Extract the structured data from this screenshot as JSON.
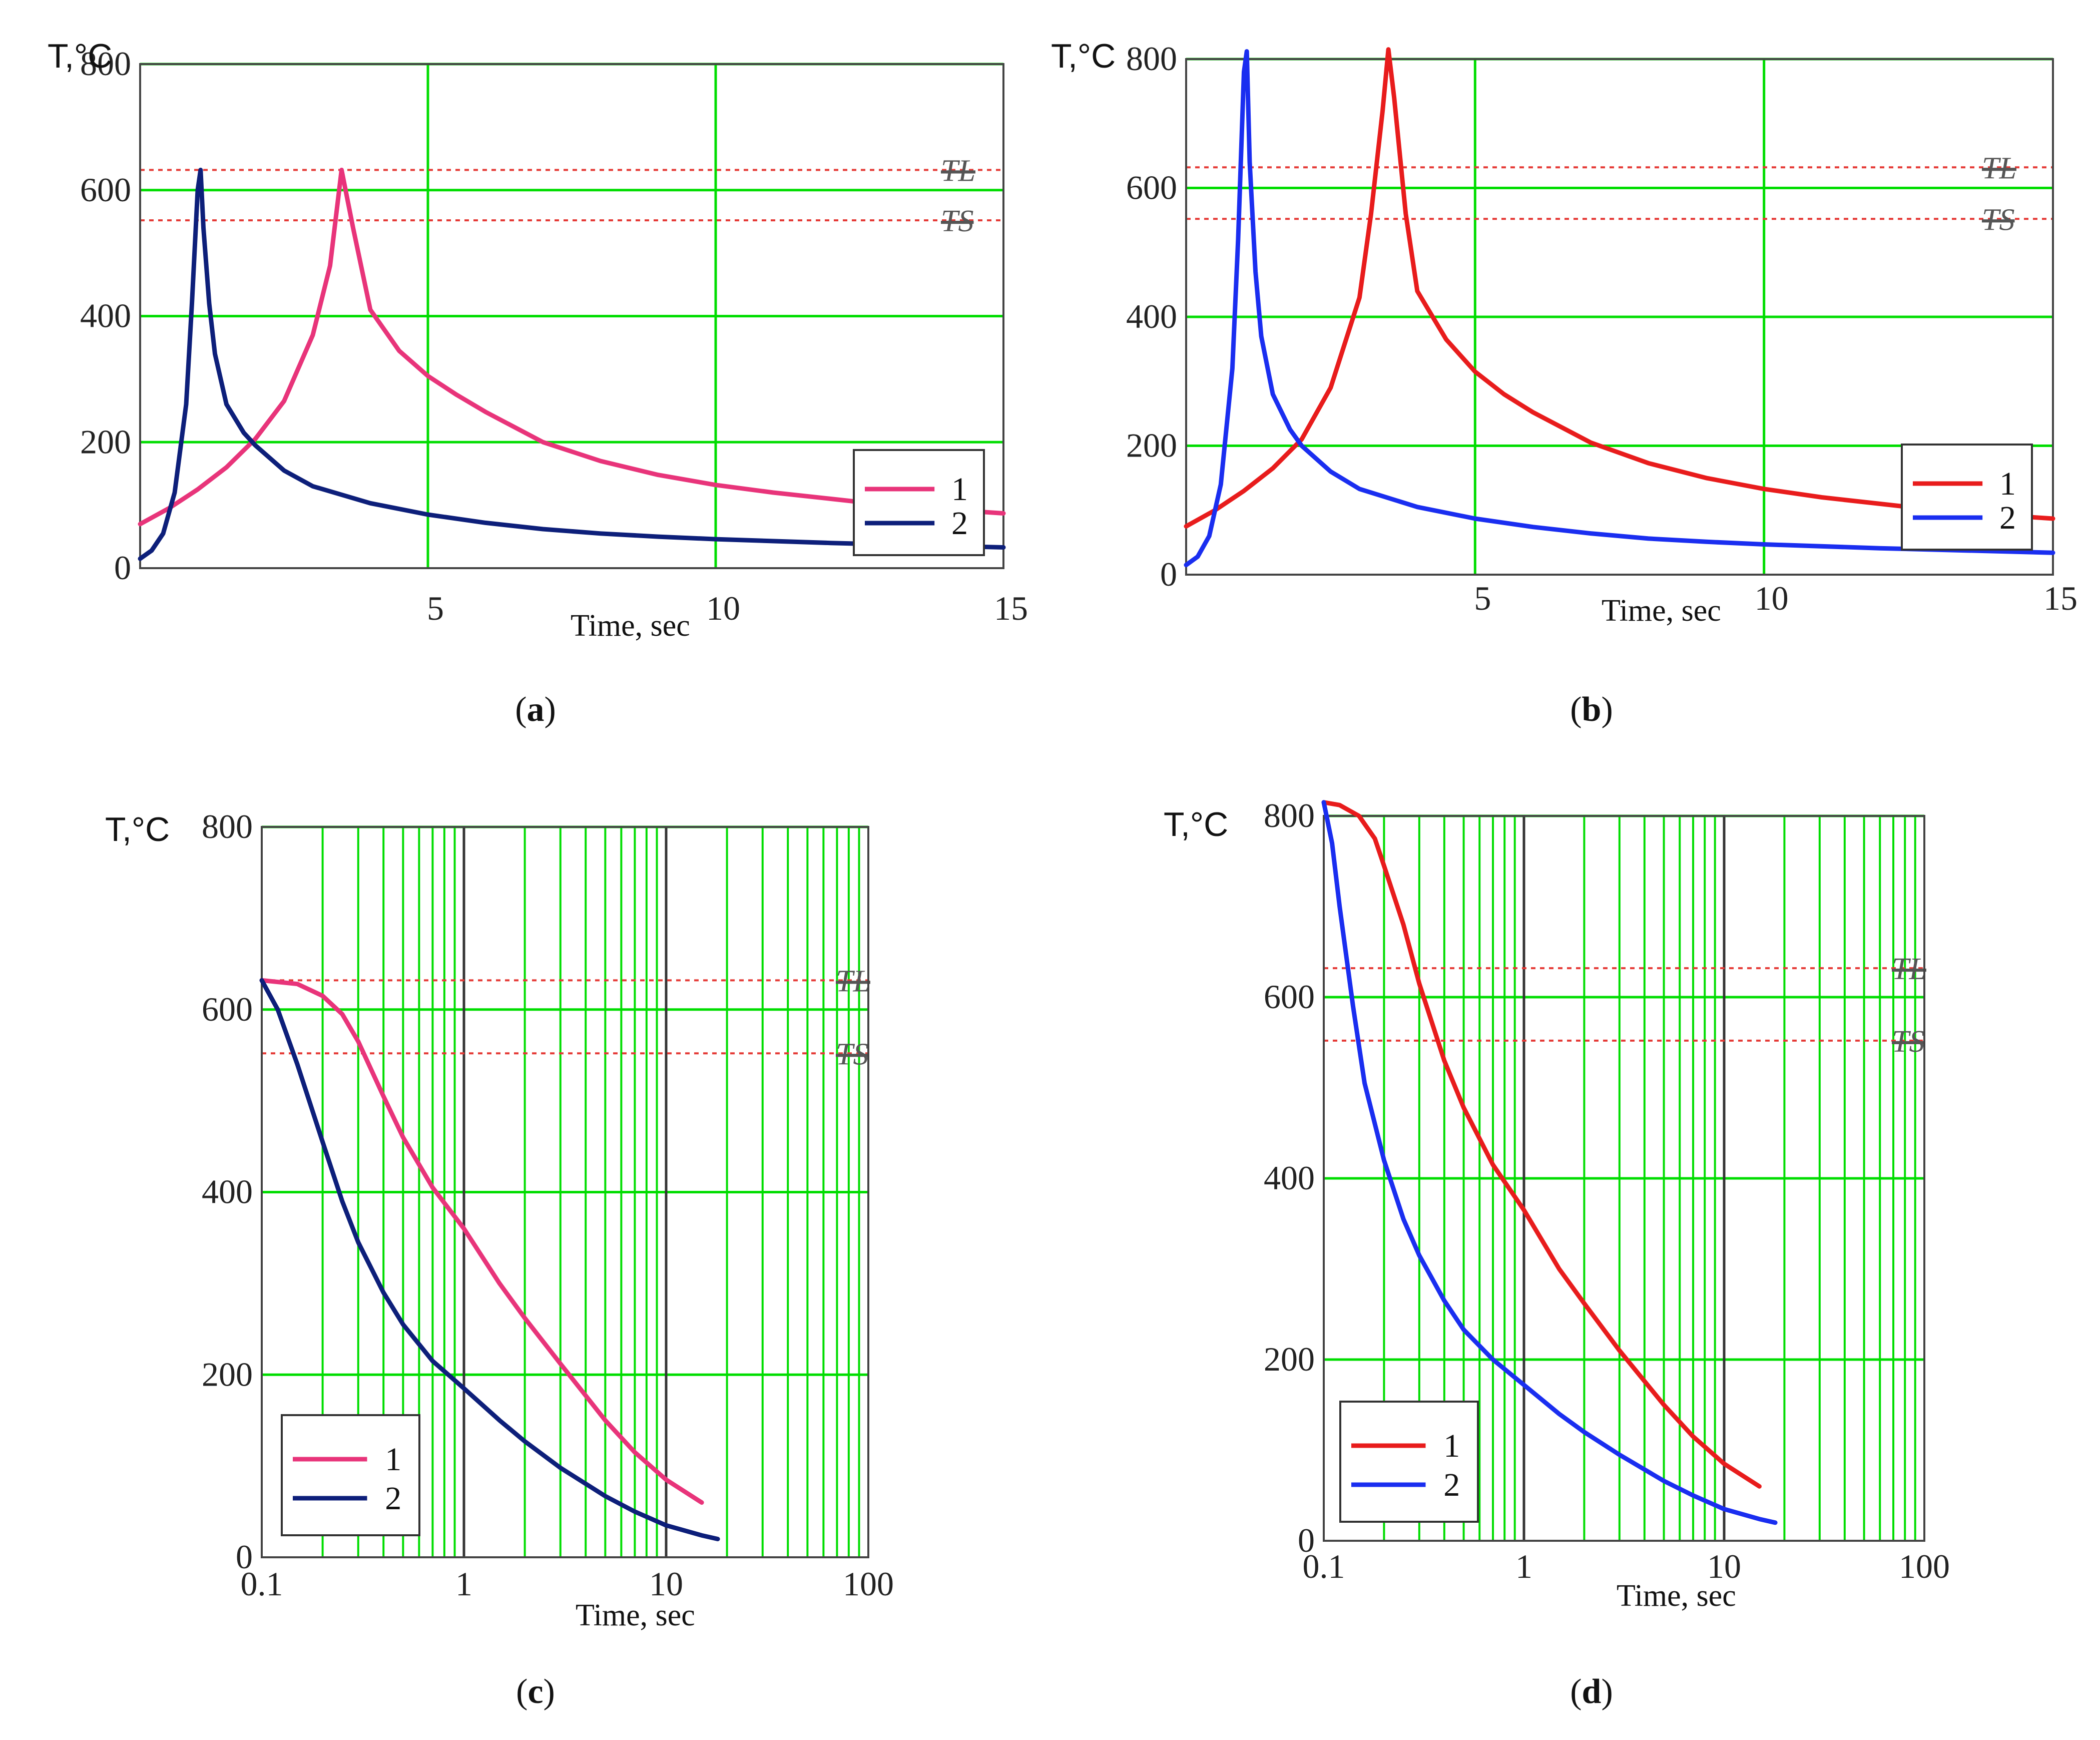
{
  "figure": {
    "panels": [
      {
        "label_open": "(",
        "letter": "a",
        "label_close": ")"
      },
      {
        "label_open": "(",
        "letter": "b",
        "label_close": ")"
      },
      {
        "label_open": "(",
        "letter": "c",
        "label_close": ")"
      },
      {
        "label_open": "(",
        "letter": "d",
        "label_close": ")"
      }
    ]
  },
  "colors": {
    "grid": "#00dd00",
    "decade_line": "#333333",
    "threshold": "#e53935",
    "pink": "#e8347a",
    "navy": "#0d1f7a",
    "red": "#e81c1c",
    "blue": "#1a2ef0"
  },
  "chart_data": [
    {
      "id": "a",
      "type": "line",
      "xscale": "linear",
      "title": "",
      "ylabel": "T,°C",
      "xlabel": "Time, sec",
      "xlim": [
        0,
        15
      ],
      "ylim": [
        0,
        800
      ],
      "xticks": [
        5,
        10,
        15
      ],
      "xtick_labels": [
        "5",
        "10",
        "15"
      ],
      "yticks": [
        0,
        200,
        400,
        600,
        800
      ],
      "ytick_labels": [
        "0",
        "200",
        "400",
        "600",
        "800"
      ],
      "thresholds": [
        {
          "name": "TL",
          "value": 632
        },
        {
          "name": "TS",
          "value": 552
        }
      ],
      "legend": {
        "position": "bottom-right",
        "entries": [
          "1",
          "2"
        ]
      },
      "series": [
        {
          "name": "1",
          "color": "#e8347a",
          "x": [
            0,
            0.5,
            1,
            1.5,
            2,
            2.5,
            3,
            3.3,
            3.5,
            3.7,
            4,
            4.5,
            5,
            5.5,
            6,
            7,
            8,
            9,
            10,
            11,
            12,
            13,
            14,
            15
          ],
          "y": [
            70,
            95,
            125,
            160,
            205,
            265,
            370,
            480,
            632,
            540,
            410,
            345,
            305,
            275,
            248,
            200,
            170,
            148,
            132,
            120,
            110,
            100,
            93,
            87
          ]
        },
        {
          "name": "2",
          "color": "#0d1f7a",
          "x": [
            0,
            0.2,
            0.4,
            0.6,
            0.8,
            0.9,
            1.0,
            1.05,
            1.1,
            1.2,
            1.3,
            1.5,
            1.8,
            2,
            2.5,
            3,
            4,
            5,
            6,
            7,
            8,
            9,
            10,
            12,
            15
          ],
          "y": [
            15,
            28,
            55,
            120,
            260,
            420,
            600,
            632,
            540,
            420,
            340,
            260,
            215,
            195,
            155,
            130,
            103,
            85,
            72,
            62,
            55,
            50,
            46,
            40,
            33
          ]
        }
      ]
    },
    {
      "id": "b",
      "type": "line",
      "xscale": "linear",
      "title": "",
      "ylabel": "T,°C",
      "xlabel": "Time, sec",
      "xlim": [
        0,
        15
      ],
      "ylim": [
        0,
        800
      ],
      "xticks": [
        5,
        10,
        15
      ],
      "xtick_labels": [
        "5",
        "10",
        "15"
      ],
      "yticks": [
        0,
        200,
        400,
        600,
        800
      ],
      "ytick_labels": [
        "0",
        "200",
        "400",
        "600",
        "800"
      ],
      "thresholds": [
        {
          "name": "TL",
          "value": 632
        },
        {
          "name": "TS",
          "value": 552
        }
      ],
      "legend": {
        "position": "bottom-right",
        "entries": [
          "1",
          "2"
        ]
      },
      "series": [
        {
          "name": "1",
          "color": "#e81c1c",
          "x": [
            0,
            0.5,
            1,
            1.5,
            2,
            2.5,
            3,
            3.2,
            3.4,
            3.5,
            3.6,
            3.8,
            4,
            4.5,
            5,
            5.5,
            6,
            7,
            8,
            9,
            10,
            11,
            12,
            13,
            14,
            15
          ],
          "y": [
            75,
            100,
            130,
            165,
            210,
            290,
            430,
            560,
            720,
            815,
            740,
            560,
            440,
            365,
            315,
            280,
            252,
            205,
            173,
            150,
            133,
            120,
            110,
            100,
            93,
            87
          ]
        },
        {
          "name": "2",
          "color": "#1a2ef0",
          "x": [
            0,
            0.2,
            0.4,
            0.6,
            0.8,
            0.9,
            1.0,
            1.05,
            1.1,
            1.2,
            1.3,
            1.5,
            1.8,
            2,
            2.5,
            3,
            4,
            5,
            6,
            7,
            8,
            9,
            10,
            12,
            15
          ],
          "y": [
            15,
            28,
            60,
            140,
            320,
            520,
            780,
            812,
            640,
            470,
            370,
            280,
            225,
            200,
            160,
            133,
            105,
            87,
            74,
            64,
            56,
            51,
            47,
            41,
            34
          ]
        }
      ]
    },
    {
      "id": "c",
      "type": "line",
      "xscale": "log",
      "title": "",
      "ylabel": "T,°C",
      "xlabel": "Time, sec",
      "xlim": [
        0.1,
        100
      ],
      "ylim": [
        0,
        800
      ],
      "xticks": [
        0.1,
        1,
        10,
        100
      ],
      "xtick_labels": [
        "0.1",
        "1",
        "10",
        "100"
      ],
      "yticks": [
        0,
        200,
        400,
        600,
        800
      ],
      "ytick_labels": [
        "0",
        "200",
        "400",
        "600",
        "800"
      ],
      "thresholds": [
        {
          "name": "TL",
          "value": 632
        },
        {
          "name": "TS",
          "value": 552
        }
      ],
      "legend": {
        "position": "bottom-left",
        "entries": [
          "1",
          "2"
        ]
      },
      "series": [
        {
          "name": "1",
          "color": "#e8347a",
          "x": [
            0.1,
            0.15,
            0.2,
            0.25,
            0.3,
            0.4,
            0.5,
            0.7,
            1,
            1.5,
            2,
            3,
            5,
            7,
            10,
            15
          ],
          "y": [
            632,
            628,
            615,
            595,
            565,
            505,
            460,
            405,
            360,
            300,
            262,
            212,
            150,
            115,
            85,
            60
          ]
        },
        {
          "name": "2",
          "color": "#0d1f7a",
          "x": [
            0.1,
            0.12,
            0.15,
            0.2,
            0.25,
            0.3,
            0.4,
            0.5,
            0.7,
            1,
            1.5,
            2,
            3,
            5,
            7,
            10,
            15,
            18
          ],
          "y": [
            632,
            600,
            540,
            455,
            390,
            345,
            290,
            255,
            215,
            185,
            150,
            127,
            98,
            67,
            50,
            35,
            24,
            20
          ]
        }
      ]
    },
    {
      "id": "d",
      "type": "line",
      "xscale": "log",
      "title": "",
      "ylabel": "T,°C",
      "xlabel": "Time, sec",
      "xlim": [
        0.1,
        100
      ],
      "ylim": [
        0,
        800
      ],
      "xticks": [
        0.1,
        1,
        10,
        100
      ],
      "xtick_labels": [
        "0.1",
        "1",
        "10",
        "100"
      ],
      "yticks": [
        0,
        200,
        400,
        600,
        800
      ],
      "ytick_labels": [
        "0",
        "200",
        "400",
        "600",
        "800"
      ],
      "thresholds": [
        {
          "name": "TL",
          "value": 632
        },
        {
          "name": "TS",
          "value": 552
        }
      ],
      "legend": {
        "position": "bottom-left",
        "entries": [
          "1",
          "2"
        ]
      },
      "series": [
        {
          "name": "1",
          "color": "#e81c1c",
          "x": [
            0.1,
            0.12,
            0.15,
            0.18,
            0.2,
            0.25,
            0.3,
            0.4,
            0.5,
            0.7,
            1,
            1.5,
            2,
            3,
            5,
            7,
            10,
            15
          ],
          "y": [
            815,
            812,
            800,
            775,
            745,
            680,
            615,
            530,
            478,
            415,
            365,
            300,
            262,
            210,
            150,
            115,
            85,
            60
          ]
        },
        {
          "name": "2",
          "color": "#1a2ef0",
          "x": [
            0.1,
            0.11,
            0.12,
            0.14,
            0.16,
            0.2,
            0.25,
            0.3,
            0.4,
            0.5,
            0.7,
            1,
            1.5,
            2,
            3,
            5,
            7,
            10,
            15,
            18
          ],
          "y": [
            815,
            770,
            700,
            590,
            505,
            420,
            355,
            315,
            265,
            233,
            200,
            172,
            140,
            120,
            95,
            66,
            50,
            35,
            24,
            20
          ]
        }
      ]
    }
  ]
}
